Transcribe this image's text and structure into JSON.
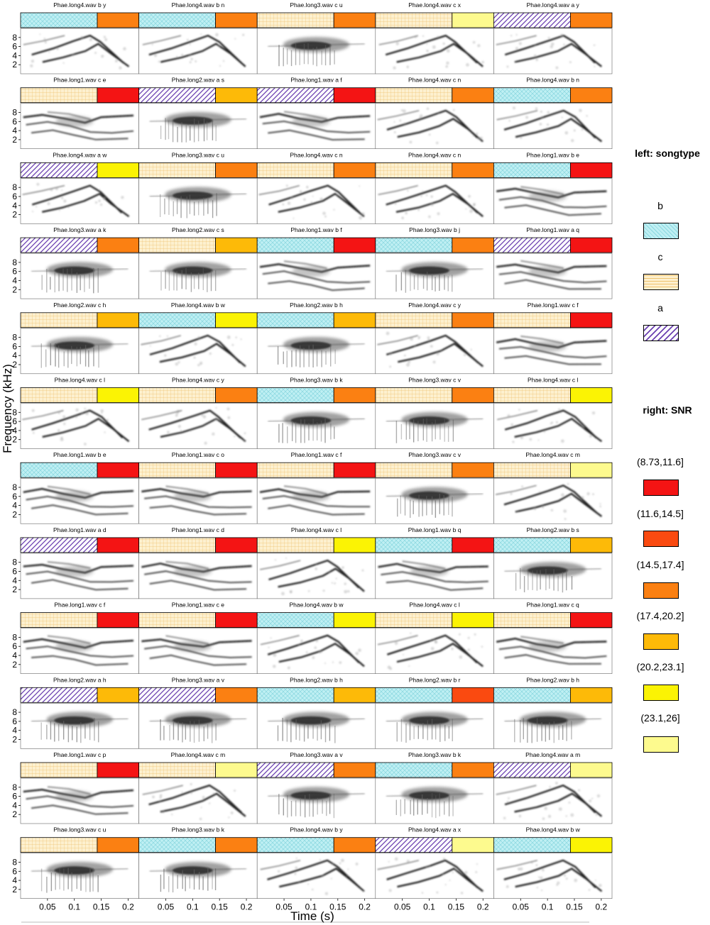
{
  "chart_data": {
    "type": "spectrogram_grid",
    "xlabel": "Time (s)",
    "ylabel": "Frequency (kHz)",
    "x_ticks": [
      "0.05",
      "0.1",
      "0.15",
      "0.2"
    ],
    "y_ticks": [
      "8",
      "6",
      "4",
      "2"
    ],
    "xlim": [
      0,
      0.22
    ],
    "ylim": [
      0,
      10
    ],
    "legend": {
      "songtype_title": "left: songtype",
      "songtypes": [
        {
          "label": "b",
          "pattern": "crosshatch",
          "color": "#bfeff3"
        },
        {
          "label": "c",
          "pattern": "grid",
          "color": "#fbe6b5"
        },
        {
          "label": "a",
          "pattern": "diagonal",
          "color": "#6a3fb0"
        }
      ],
      "snr_title": "right: SNR",
      "snr": [
        {
          "label": "(8.73,11.6]",
          "color": "#f41414"
        },
        {
          "label": "(11.6,14.5]",
          "color": "#fa4a10"
        },
        {
          "label": "(14.5,17.4]",
          "color": "#fb8012"
        },
        {
          "label": "(17.4,20.2]",
          "color": "#fdba08"
        },
        {
          "label": "(20.2,23.1]",
          "color": "#fbf304"
        },
        {
          "label": "(23.1,26]",
          "color": "#fdfa8e"
        }
      ]
    },
    "panels": [
      {
        "title": "Phae.long4.wav b y",
        "songtype": "b",
        "snr": 3,
        "style": "tonal"
      },
      {
        "title": "Phae.long4.wav b n",
        "songtype": "b",
        "snr": 3,
        "style": "tonal"
      },
      {
        "title": "Phae.long3.wav c u",
        "songtype": "c",
        "snr": 3,
        "style": "blob"
      },
      {
        "title": "Phae.long4.wav c x",
        "songtype": "c",
        "snr": 6,
        "style": "tonal"
      },
      {
        "title": "Phae.long4.wav a y",
        "songtype": "a",
        "snr": 3,
        "style": "tonal"
      },
      {
        "title": "Phae.long1.wav c e",
        "songtype": "c",
        "snr": 1,
        "style": "harmonic"
      },
      {
        "title": "Phae.long2.wav a s",
        "songtype": "a",
        "snr": 4,
        "style": "blob"
      },
      {
        "title": "Phae.long1.wav a f",
        "songtype": "a",
        "snr": 1,
        "style": "harmonic"
      },
      {
        "title": "Phae.long4.wav c n",
        "songtype": "c",
        "snr": 3,
        "style": "tonal"
      },
      {
        "title": "Phae.long4.wav b n",
        "songtype": "b",
        "snr": 3,
        "style": "tonal"
      },
      {
        "title": "Phae.long4.wav a w",
        "songtype": "a",
        "snr": 5,
        "style": "tonal"
      },
      {
        "title": "Phae.long3.wav c u",
        "songtype": "c",
        "snr": 3,
        "style": "blob"
      },
      {
        "title": "Phae.long4.wav c n",
        "songtype": "c",
        "snr": 3,
        "style": "tonal"
      },
      {
        "title": "Phae.long4.wav c n",
        "songtype": "c",
        "snr": 3,
        "style": "tonal"
      },
      {
        "title": "Phae.long1.wav b e",
        "songtype": "b",
        "snr": 1,
        "style": "harmonic"
      },
      {
        "title": "Phae.long3.wav a k",
        "songtype": "a",
        "snr": 3,
        "style": "blob"
      },
      {
        "title": "Phae.long2.wav c s",
        "songtype": "c",
        "snr": 4,
        "style": "blob"
      },
      {
        "title": "Phae.long1.wav b f",
        "songtype": "b",
        "snr": 1,
        "style": "harmonic"
      },
      {
        "title": "Phae.long3.wav b j",
        "songtype": "b",
        "snr": 3,
        "style": "blob"
      },
      {
        "title": "Phae.long1.wav a q",
        "songtype": "a",
        "snr": 1,
        "style": "harmonic"
      },
      {
        "title": "Phae.long2.wav c h",
        "songtype": "c",
        "snr": 4,
        "style": "blob"
      },
      {
        "title": "Phae.long4.wav b w",
        "songtype": "b",
        "snr": 5,
        "style": "tonal"
      },
      {
        "title": "Phae.long2.wav b h",
        "songtype": "b",
        "snr": 4,
        "style": "blob"
      },
      {
        "title": "Phae.long4.wav c y",
        "songtype": "c",
        "snr": 3,
        "style": "tonal"
      },
      {
        "title": "Phae.long1.wav c f",
        "songtype": "c",
        "snr": 1,
        "style": "harmonic"
      },
      {
        "title": "Phae.long4.wav c l",
        "songtype": "c",
        "snr": 5,
        "style": "tonal"
      },
      {
        "title": "Phae.long4.wav c y",
        "songtype": "c",
        "snr": 3,
        "style": "tonal"
      },
      {
        "title": "Phae.long3.wav b k",
        "songtype": "b",
        "snr": 3,
        "style": "blob"
      },
      {
        "title": "Phae.long3.wav c v",
        "songtype": "c",
        "snr": 3,
        "style": "blob"
      },
      {
        "title": "Phae.long4.wav c l",
        "songtype": "c",
        "snr": 5,
        "style": "tonal"
      },
      {
        "title": "Phae.long1.wav b e",
        "songtype": "b",
        "snr": 1,
        "style": "harmonic"
      },
      {
        "title": "Phae.long1.wav c o",
        "songtype": "c",
        "snr": 1,
        "style": "harmonic"
      },
      {
        "title": "Phae.long1.wav c f",
        "songtype": "c",
        "snr": 1,
        "style": "harmonic"
      },
      {
        "title": "Phae.long3.wav c v",
        "songtype": "c",
        "snr": 3,
        "style": "blob"
      },
      {
        "title": "Phae.long4.wav c m",
        "songtype": "c",
        "snr": 6,
        "style": "tonal"
      },
      {
        "title": "Phae.long1.wav a d",
        "songtype": "a",
        "snr": 1,
        "style": "harmonic"
      },
      {
        "title": "Phae.long1.wav c d",
        "songtype": "c",
        "snr": 1,
        "style": "harmonic"
      },
      {
        "title": "Phae.long4.wav c l",
        "songtype": "c",
        "snr": 5,
        "style": "tonal"
      },
      {
        "title": "Phae.long1.wav b q",
        "songtype": "b",
        "snr": 1,
        "style": "harmonic"
      },
      {
        "title": "Phae.long2.wav b s",
        "songtype": "b",
        "snr": 4,
        "style": "blob"
      },
      {
        "title": "Phae.long1.wav c f",
        "songtype": "c",
        "snr": 1,
        "style": "harmonic"
      },
      {
        "title": "Phae.long1.wav c e",
        "songtype": "c",
        "snr": 1,
        "style": "harmonic"
      },
      {
        "title": "Phae.long4.wav b w",
        "songtype": "b",
        "snr": 5,
        "style": "tonal"
      },
      {
        "title": "Phae.long4.wav c l",
        "songtype": "c",
        "snr": 5,
        "style": "tonal"
      },
      {
        "title": "Phae.long1.wav c q",
        "songtype": "c",
        "snr": 1,
        "style": "harmonic"
      },
      {
        "title": "Phae.long2.wav a h",
        "songtype": "a",
        "snr": 4,
        "style": "blob"
      },
      {
        "title": "Phae.long3.wav a v",
        "songtype": "a",
        "snr": 3,
        "style": "blob"
      },
      {
        "title": "Phae.long2.wav b h",
        "songtype": "b",
        "snr": 4,
        "style": "blob"
      },
      {
        "title": "Phae.long2.wav b r",
        "songtype": "b",
        "snr": 2,
        "style": "blob"
      },
      {
        "title": "Phae.long2.wav b h",
        "songtype": "b",
        "snr": 4,
        "style": "blob"
      },
      {
        "title": "Phae.long1.wav c p",
        "songtype": "c",
        "snr": 1,
        "style": "harmonic"
      },
      {
        "title": "Phae.long4.wav c m",
        "songtype": "c",
        "snr": 6,
        "style": "tonal"
      },
      {
        "title": "Phae.long3.wav a v",
        "songtype": "a",
        "snr": 3,
        "style": "blob"
      },
      {
        "title": "Phae.long3.wav b k",
        "songtype": "b",
        "snr": 3,
        "style": "blob"
      },
      {
        "title": "Phae.long4.wav a m",
        "songtype": "a",
        "snr": 6,
        "style": "tonal"
      },
      {
        "title": "Phae.long3.wav c u",
        "songtype": "c",
        "snr": 3,
        "style": "blob"
      },
      {
        "title": "Phae.long3.wav b k",
        "songtype": "b",
        "snr": 3,
        "style": "blob"
      },
      {
        "title": "Phae.long4.wav b y",
        "songtype": "b",
        "snr": 3,
        "style": "tonal"
      },
      {
        "title": "Phae.long4.wav a x",
        "songtype": "a",
        "snr": 6,
        "style": "tonal"
      },
      {
        "title": "Phae.long4.wav b w",
        "songtype": "b",
        "snr": 5,
        "style": "tonal"
      }
    ]
  }
}
